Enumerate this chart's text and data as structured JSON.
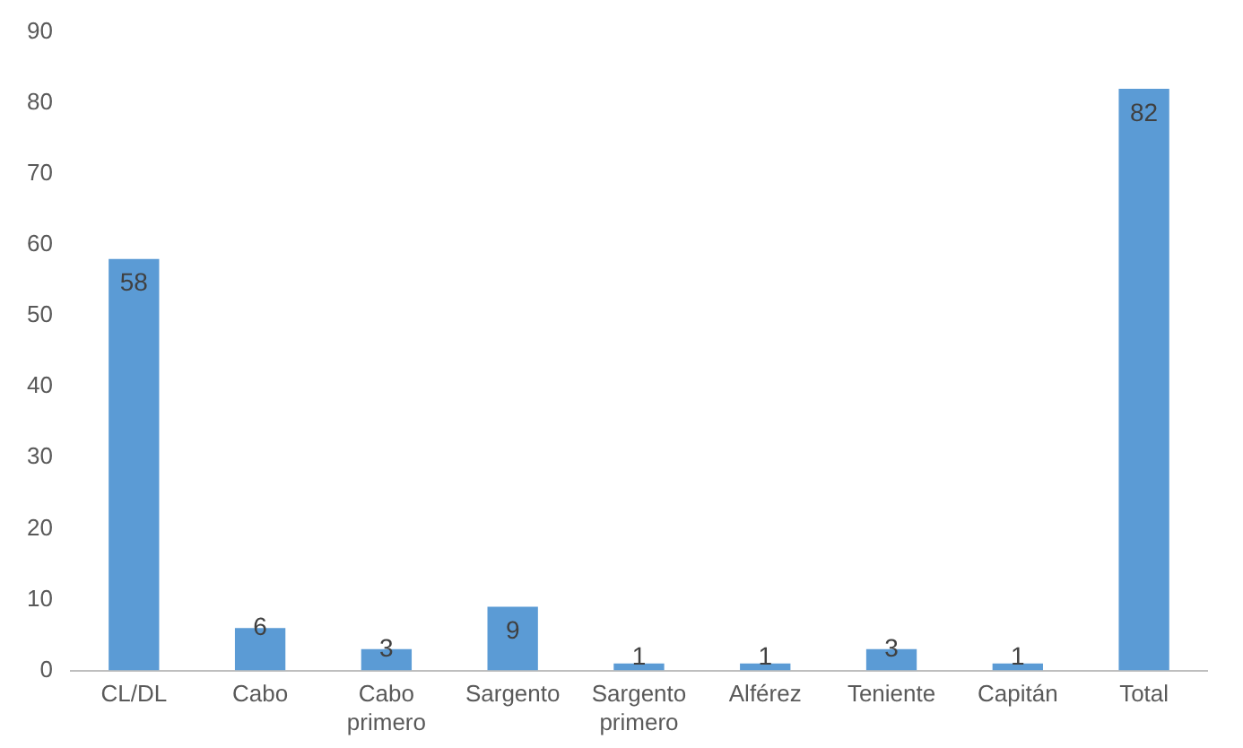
{
  "chart_data": {
    "type": "bar",
    "categories": [
      "CL/DL",
      "Cabo",
      "Cabo primero",
      "Sargento",
      "Sargento primero",
      "Alférez",
      "Teniente",
      "Capitán",
      "Total"
    ],
    "values": [
      58,
      6,
      3,
      9,
      1,
      1,
      3,
      1,
      82
    ],
    "color": "#5b9bd5",
    "ylim": [
      0,
      90
    ],
    "yticks": [
      0,
      10,
      20,
      30,
      40,
      50,
      60,
      70,
      80,
      90
    ],
    "grid": false,
    "legend": false,
    "data_labels": true
  }
}
